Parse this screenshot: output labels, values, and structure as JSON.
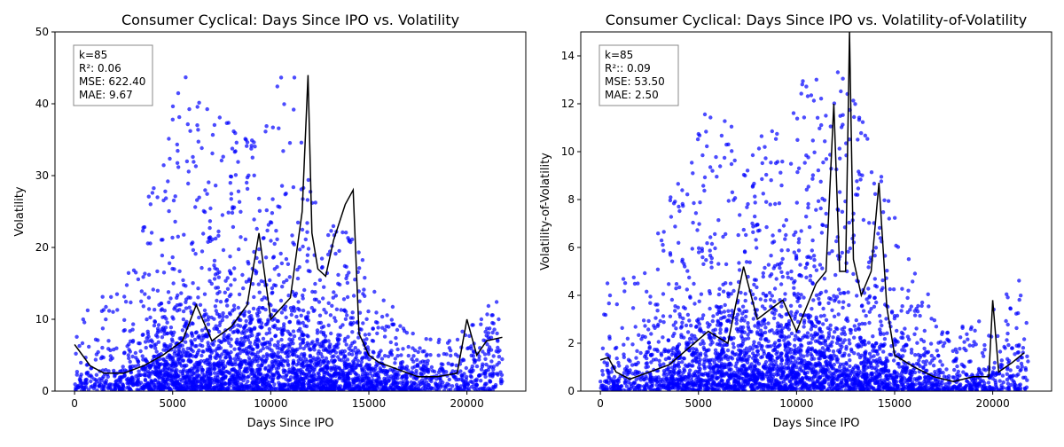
{
  "chart_data": [
    {
      "type": "scatter",
      "title": "Consumer Cyclical: Days Since IPO vs. Volatility",
      "xlabel": "Days Since IPO",
      "ylabel": "Volatility",
      "xlim": [
        -1000,
        23000
      ],
      "ylim": [
        0,
        50
      ],
      "xticks": [
        0,
        5000,
        10000,
        15000,
        20000
      ],
      "yticks": [
        0,
        10,
        20,
        30,
        40,
        50
      ],
      "grid": false,
      "stats_box": [
        "k=85",
        "R²: 0.06",
        "MSE: 622.40",
        "MAE: 9.67"
      ],
      "point_color": "#0000ff",
      "line_color": "#000000",
      "scatter_density": [
        {
          "x": 0,
          "y_typ": 2,
          "y_max": 12,
          "density": 0.25
        },
        {
          "x": 2000,
          "y_typ": 2.5,
          "y_max": 14,
          "density": 0.35
        },
        {
          "x": 4000,
          "y_typ": 4,
          "y_max": 30,
          "density": 0.75
        },
        {
          "x": 5500,
          "y_typ": 5,
          "y_max": 45,
          "density": 1.0
        },
        {
          "x": 7000,
          "y_typ": 5,
          "y_max": 40,
          "density": 0.9
        },
        {
          "x": 9000,
          "y_typ": 6,
          "y_max": 35,
          "density": 0.95
        },
        {
          "x": 11000,
          "y_typ": 6,
          "y_max": 48,
          "density": 1.0
        },
        {
          "x": 12500,
          "y_typ": 4,
          "y_max": 25,
          "density": 0.85
        },
        {
          "x": 14000,
          "y_typ": 3.5,
          "y_max": 22,
          "density": 0.85
        },
        {
          "x": 15500,
          "y_typ": 3,
          "y_max": 14,
          "density": 0.6
        },
        {
          "x": 17500,
          "y_typ": 2,
          "y_max": 7,
          "density": 0.35
        },
        {
          "x": 19500,
          "y_typ": 2,
          "y_max": 8,
          "density": 0.3
        },
        {
          "x": 21500,
          "y_typ": 4.5,
          "y_max": 13,
          "density": 0.3
        }
      ],
      "trend_line": {
        "x": [
          0,
          400,
          800,
          1500,
          2500,
          3500,
          4500,
          5500,
          6200,
          7000,
          8000,
          8800,
          9400,
          10000,
          11000,
          11600,
          11900,
          12100,
          12400,
          12800,
          13200,
          13800,
          14200,
          14500,
          15000,
          15500,
          16500,
          17500,
          18500,
          19500,
          20000,
          20500,
          21000,
          21800
        ],
        "y": [
          6.5,
          5,
          3.5,
          2.5,
          2.5,
          3.5,
          5,
          7,
          12,
          7,
          9,
          12,
          22,
          10,
          13,
          25,
          44,
          22,
          17,
          16,
          21,
          26,
          28,
          8,
          5,
          4,
          3,
          2,
          2,
          2.5,
          10,
          5,
          7,
          7.5
        ]
      }
    },
    {
      "type": "scatter",
      "title": "Consumer Cyclical: Days Since IPO vs. Volatility-of-Volatility",
      "xlabel": "Days Since IPO",
      "ylabel": "Volatility-of-Volatility",
      "xlim": [
        -1000,
        23000
      ],
      "ylim": [
        0,
        15
      ],
      "xticks": [
        0,
        5000,
        10000,
        15000,
        20000
      ],
      "yticks": [
        0,
        2,
        4,
        6,
        8,
        10,
        12,
        14
      ],
      "grid": false,
      "stats_box": [
        "k=85",
        "R²:: 0.09",
        "MSE: 53.50",
        "MAE: 2.50"
      ],
      "point_color": "#0000ff",
      "line_color": "#000000",
      "scatter_density": [
        {
          "x": 0,
          "y_typ": 0.6,
          "y_max": 4.5,
          "density": 0.25
        },
        {
          "x": 2000,
          "y_typ": 0.8,
          "y_max": 5,
          "density": 0.35
        },
        {
          "x": 4000,
          "y_typ": 1.2,
          "y_max": 9,
          "density": 0.75
        },
        {
          "x": 5500,
          "y_typ": 1.5,
          "y_max": 12,
          "density": 1.0
        },
        {
          "x": 7000,
          "y_typ": 1.5,
          "y_max": 11,
          "density": 0.9
        },
        {
          "x": 9000,
          "y_typ": 1.8,
          "y_max": 11,
          "density": 0.95
        },
        {
          "x": 11000,
          "y_typ": 1.8,
          "y_max": 14.5,
          "density": 1.0
        },
        {
          "x": 12500,
          "y_typ": 1.5,
          "y_max": 13,
          "density": 0.85
        },
        {
          "x": 14000,
          "y_typ": 1.2,
          "y_max": 10,
          "density": 0.85
        },
        {
          "x": 15500,
          "y_typ": 1.0,
          "y_max": 6,
          "density": 0.6
        },
        {
          "x": 17500,
          "y_typ": 0.6,
          "y_max": 2.5,
          "density": 0.35
        },
        {
          "x": 19500,
          "y_typ": 0.6,
          "y_max": 3,
          "density": 0.3
        },
        {
          "x": 21500,
          "y_typ": 1.3,
          "y_max": 5,
          "density": 0.3
        }
      ],
      "trend_line": {
        "x": [
          0,
          400,
          800,
          1500,
          2500,
          3500,
          4500,
          5500,
          6500,
          7300,
          8000,
          8800,
          9300,
          10000,
          11000,
          11500,
          11900,
          12200,
          12500,
          12700,
          12900,
          13300,
          13800,
          14200,
          14600,
          15000,
          16000,
          17000,
          18000,
          19000,
          19800,
          20000,
          20300,
          21000,
          21600
        ],
        "y": [
          1.3,
          1.4,
          0.8,
          0.5,
          0.8,
          1.1,
          1.8,
          2.5,
          2.0,
          5.2,
          3.0,
          3.5,
          3.8,
          2.5,
          4.5,
          5.0,
          12.0,
          5.0,
          5.0,
          15.0,
          5.5,
          4.0,
          5.0,
          8.7,
          3.5,
          1.5,
          1.0,
          0.6,
          0.4,
          0.6,
          0.6,
          3.8,
          0.8,
          1.2,
          1.6
        ]
      }
    }
  ]
}
